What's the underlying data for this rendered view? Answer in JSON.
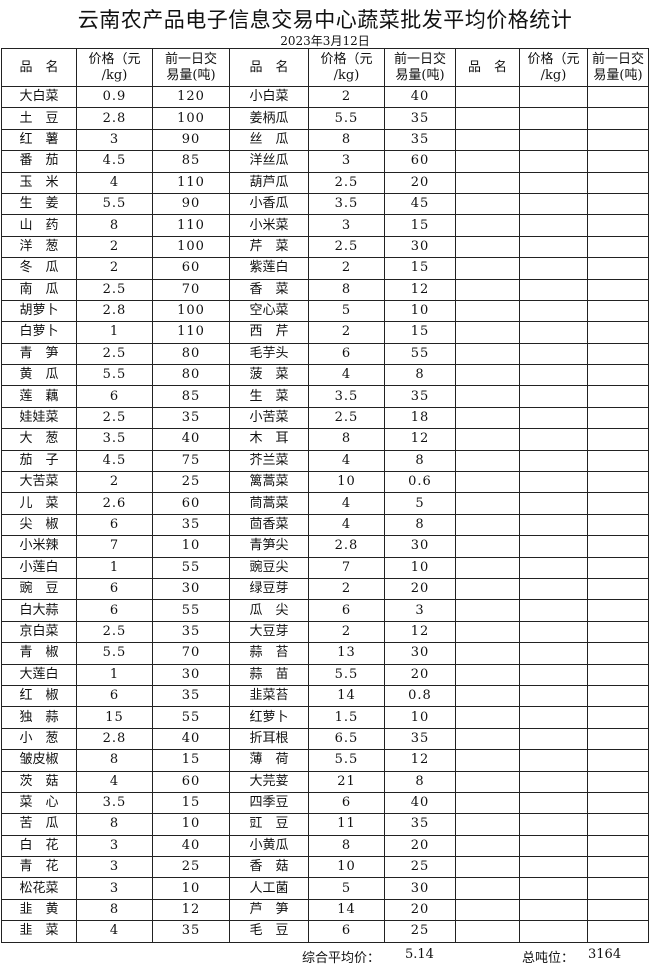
{
  "title": "云南农产品电子信息交易中心蔬菜批发平均价格统计",
  "date": "2023年3月12日",
  "headers": {
    "name": "品　名",
    "price_l1": "价格（元",
    "price_l2": "/kg)",
    "vol_l1": "前一日交",
    "vol_l2": "易量(吨)"
  },
  "left": [
    [
      "大白菜",
      "0.9",
      "120"
    ],
    [
      "土　豆",
      "2.8",
      "100"
    ],
    [
      "红　薯",
      "3",
      "90"
    ],
    [
      "番　茄",
      "4.5",
      "85"
    ],
    [
      "玉　米",
      "4",
      "110"
    ],
    [
      "生　姜",
      "5.5",
      "90"
    ],
    [
      "山　药",
      "8",
      "110"
    ],
    [
      "洋　葱",
      "2",
      "100"
    ],
    [
      "冬　瓜",
      "2",
      "60"
    ],
    [
      "南　瓜",
      "2.5",
      "70"
    ],
    [
      "胡萝卜",
      "2.8",
      "100"
    ],
    [
      "白萝卜",
      "1",
      "110"
    ],
    [
      "青　笋",
      "2.5",
      "80"
    ],
    [
      "黄　瓜",
      "5.5",
      "80"
    ],
    [
      "莲　藕",
      "6",
      "85"
    ],
    [
      "娃娃菜",
      "2.5",
      "35"
    ],
    [
      "大　葱",
      "3.5",
      "40"
    ],
    [
      "茄　子",
      "4.5",
      "75"
    ],
    [
      "大苦菜",
      "2",
      "25"
    ],
    [
      "儿　菜",
      "2.6",
      "60"
    ],
    [
      "尖　椒",
      "6",
      "35"
    ],
    [
      "小米辣",
      "7",
      "10"
    ],
    [
      "小莲白",
      "1",
      "55"
    ],
    [
      "豌　豆",
      "6",
      "30"
    ],
    [
      "白大蒜",
      "6",
      "55"
    ],
    [
      "京白菜",
      "2.5",
      "35"
    ],
    [
      "青　椒",
      "5.5",
      "70"
    ],
    [
      "大莲白",
      "1",
      "30"
    ],
    [
      "红　椒",
      "6",
      "35"
    ],
    [
      "独　蒜",
      "15",
      "55"
    ],
    [
      "小　葱",
      "2.8",
      "40"
    ],
    [
      "皱皮椒",
      "8",
      "15"
    ],
    [
      "茨　菇",
      "4",
      "60"
    ],
    [
      "菜　心",
      "3.5",
      "15"
    ],
    [
      "苦　瓜",
      "8",
      "10"
    ],
    [
      "白　花",
      "3",
      "40"
    ],
    [
      "青　花",
      "3",
      "25"
    ],
    [
      "松花菜",
      "3",
      "10"
    ],
    [
      "韭　黄",
      "8",
      "12"
    ],
    [
      "韭　菜",
      "4",
      "35"
    ]
  ],
  "middle": [
    [
      "小白菜",
      "2",
      "40"
    ],
    [
      "姜柄瓜",
      "5.5",
      "35"
    ],
    [
      "丝　瓜",
      "8",
      "35"
    ],
    [
      "洋丝瓜",
      "3",
      "60"
    ],
    [
      "葫芦瓜",
      "2.5",
      "20"
    ],
    [
      "小香瓜",
      "3.5",
      "45"
    ],
    [
      "小米菜",
      "3",
      "15"
    ],
    [
      "芹　菜",
      "2.5",
      "30"
    ],
    [
      "紫莲白",
      "2",
      "15"
    ],
    [
      "香　菜",
      "8",
      "12"
    ],
    [
      "空心菜",
      "5",
      "10"
    ],
    [
      "西　芹",
      "2",
      "15"
    ],
    [
      "毛芋头",
      "6",
      "55"
    ],
    [
      "菠　菜",
      "4",
      "8"
    ],
    [
      "生　菜",
      "3.5",
      "35"
    ],
    [
      "小苦菜",
      "2.5",
      "18"
    ],
    [
      "木　耳",
      "8",
      "12"
    ],
    [
      "芥兰菜",
      "4",
      "8"
    ],
    [
      "篱蒿菜",
      "10",
      "0.6"
    ],
    [
      "茼蒿菜",
      "4",
      "5"
    ],
    [
      "茴香菜",
      "4",
      "8"
    ],
    [
      "青笋尖",
      "2.8",
      "30"
    ],
    [
      "豌豆尖",
      "7",
      "10"
    ],
    [
      "绿豆芽",
      "2",
      "20"
    ],
    [
      "瓜　尖",
      "6",
      "3"
    ],
    [
      "大豆芽",
      "2",
      "12"
    ],
    [
      "蒜　苔",
      "13",
      "30"
    ],
    [
      "蒜　苗",
      "5.5",
      "20"
    ],
    [
      "韭菜苔",
      "14",
      "0.8"
    ],
    [
      "红萝卜",
      "1.5",
      "10"
    ],
    [
      "折耳根",
      "6.5",
      "35"
    ],
    [
      "薄　荷",
      "5.5",
      "12"
    ],
    [
      "大芫荽",
      "21",
      "8"
    ],
    [
      "四季豆",
      "6",
      "40"
    ],
    [
      "豇　豆",
      "11",
      "35"
    ],
    [
      "小黄瓜",
      "8",
      "20"
    ],
    [
      "香　菇",
      "10",
      "25"
    ],
    [
      "人工菌",
      "5",
      "30"
    ],
    [
      "芦　笋",
      "14",
      "20"
    ],
    [
      "毛　豆",
      "6",
      "25"
    ]
  ],
  "footer": {
    "avg_label": "综合平均价：",
    "avg_value": "5.14",
    "total_label": "总吨位：",
    "total_value": "3164"
  }
}
